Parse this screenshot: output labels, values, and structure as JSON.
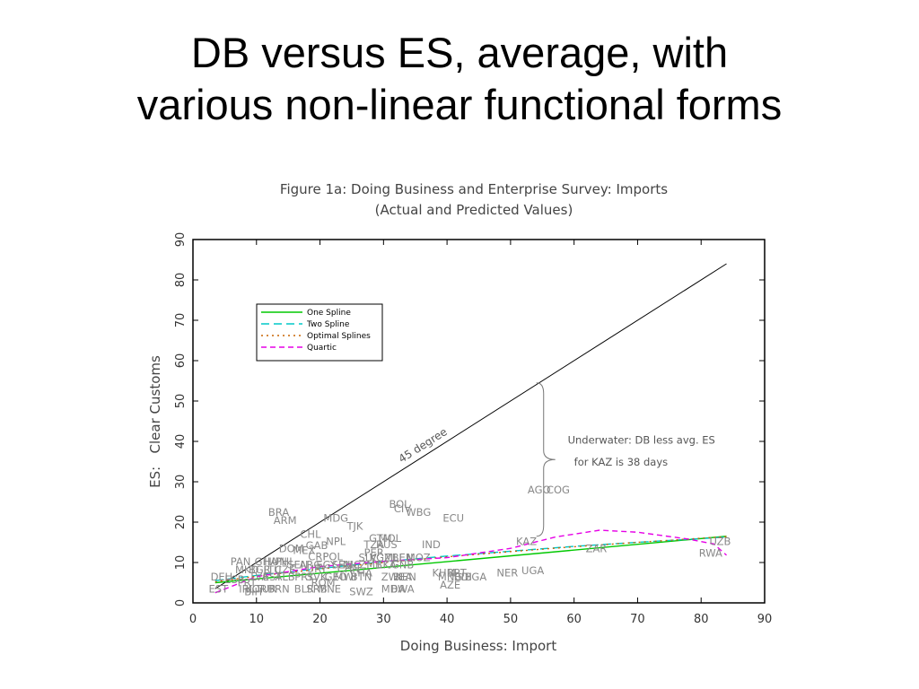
{
  "slide": {
    "title_line1": "DB versus ES, average, with",
    "title_line2": "various non-linear functional forms"
  },
  "chart_data": {
    "type": "scatter",
    "title": "Figure 1a: Doing Business and Enterprise Survey: Imports",
    "subtitle": "(Actual and Predicted Values)",
    "xlabel": "Doing Business: Import",
    "ylabel": "ES:   Clear Customs",
    "xlim": [
      0,
      90
    ],
    "ylim": [
      0,
      90
    ],
    "xticks": [
      0,
      10,
      20,
      30,
      40,
      50,
      60,
      70,
      80,
      90
    ],
    "yticks": [
      0,
      10,
      20,
      30,
      40,
      50,
      60,
      70,
      80,
      90
    ],
    "grid": false,
    "legend_position": "top-left",
    "legend": [
      {
        "name": "One Spline",
        "color": "#00c800",
        "dash": "solid"
      },
      {
        "name": "Two Spline",
        "color": "#00c8c8",
        "dash": "longdash"
      },
      {
        "name": "Optimal Splines",
        "color": "#c86400",
        "dash": "dotted"
      },
      {
        "name": "Quartic",
        "color": "#e600e6",
        "dash": "dashed"
      }
    ],
    "reference_line": {
      "label": "45 degree",
      "x": [
        3.5,
        84
      ],
      "y": [
        3.5,
        84
      ]
    },
    "series": [
      {
        "name": "One Spline",
        "x": [
          3.5,
          84
        ],
        "y": [
          5,
          16.5
        ]
      },
      {
        "name": "Two Spline",
        "x": [
          3.5,
          10,
          20,
          30,
          40,
          50,
          60,
          70,
          84
        ],
        "y": [
          5.5,
          6.8,
          8.5,
          10.2,
          11.6,
          12.8,
          14,
          15,
          16.3
        ]
      },
      {
        "name": "Optimal Splines",
        "x": [
          3.5,
          10,
          20,
          30,
          40,
          50,
          60,
          70,
          84
        ],
        "y": [
          5.2,
          6.6,
          8.4,
          10,
          11.4,
          12.7,
          13.9,
          15,
          16.4
        ]
      },
      {
        "name": "Quartic",
        "x": [
          3.5,
          10,
          20,
          30,
          40,
          50,
          57,
          64,
          70,
          78,
          82,
          84
        ],
        "y": [
          2.5,
          6.5,
          9,
          10.3,
          11.2,
          13.5,
          16.3,
          18,
          17.5,
          15.8,
          14.6,
          11.8
        ]
      }
    ],
    "annotations": [
      {
        "text": "Underwater: DB less avg. ES",
        "x": 59,
        "y": 39.5
      },
      {
        "text": "for KAZ is 38 days",
        "x": 60,
        "y": 34
      }
    ],
    "brace": {
      "x": 54.5,
      "y_from": 54.5,
      "y_to": 16.5
    },
    "points": [
      {
        "label": "AGO",
        "x": 54.5,
        "y": 28
      },
      {
        "label": "COG",
        "x": 57.5,
        "y": 28
      },
      {
        "label": "BOL",
        "x": 32.5,
        "y": 24.5
      },
      {
        "label": "CIV",
        "x": 33,
        "y": 23.3
      },
      {
        "label": "WBG",
        "x": 35.5,
        "y": 22.5
      },
      {
        "label": "ECU",
        "x": 41,
        "y": 21
      },
      {
        "label": "BRA",
        "x": 13.5,
        "y": 22.5
      },
      {
        "label": "ARM",
        "x": 14.5,
        "y": 20.5
      },
      {
        "label": "MDG",
        "x": 22.5,
        "y": 21
      },
      {
        "label": "TJK",
        "x": 25.5,
        "y": 19
      },
      {
        "label": "CHL",
        "x": 18.5,
        "y": 17
      },
      {
        "label": "NPL",
        "x": 22.5,
        "y": 15.2
      },
      {
        "label": "GAB",
        "x": 19.5,
        "y": 14.2
      },
      {
        "label": "GTM",
        "x": 29.5,
        "y": 16
      },
      {
        "label": "MOL",
        "x": 31,
        "y": 16
      },
      {
        "label": "TZA",
        "x": 28.5,
        "y": 14.5
      },
      {
        "label": "RUS",
        "x": 30.5,
        "y": 14.5
      },
      {
        "label": "IND",
        "x": 37.5,
        "y": 14.5
      },
      {
        "label": "KAZ",
        "x": 52.5,
        "y": 15.2
      },
      {
        "label": "UZB",
        "x": 83,
        "y": 15.2
      },
      {
        "label": "ZAR",
        "x": 63.5,
        "y": 13.5
      },
      {
        "label": "RWA",
        "x": 81.5,
        "y": 12.3
      },
      {
        "label": "DOM",
        "x": 15.5,
        "y": 13.5
      },
      {
        "label": "MEX",
        "x": 17.5,
        "y": 13
      },
      {
        "label": "CRI",
        "x": 19.5,
        "y": 11.5
      },
      {
        "label": "POL",
        "x": 22,
        "y": 11.5
      },
      {
        "label": "PER",
        "x": 28.5,
        "y": 12.5
      },
      {
        "label": "SLV",
        "x": 27.5,
        "y": 11.2
      },
      {
        "label": "KGZ",
        "x": 29.5,
        "y": 11.2
      },
      {
        "label": "MLI",
        "x": 31.5,
        "y": 11.2
      },
      {
        "label": "BEN",
        "x": 33,
        "y": 11.2
      },
      {
        "label": "MOZ",
        "x": 35.5,
        "y": 11.2
      },
      {
        "label": "PAN",
        "x": 7.5,
        "y": 10.2
      },
      {
        "label": "GHA",
        "x": 11.5,
        "y": 10.2
      },
      {
        "label": "HUN",
        "x": 13,
        "y": 10.2
      },
      {
        "label": "PHL",
        "x": 14.5,
        "y": 10.2
      },
      {
        "label": "SEN",
        "x": 16.5,
        "y": 9.5
      },
      {
        "label": "ARG",
        "x": 18.5,
        "y": 9.5
      },
      {
        "label": "EGY",
        "x": 21,
        "y": 9.5
      },
      {
        "label": "SEN",
        "x": 23.5,
        "y": 9.5
      },
      {
        "label": "NIC",
        "x": 25,
        "y": 9.5
      },
      {
        "label": "ZMB",
        "x": 28,
        "y": 9.5
      },
      {
        "label": "LKA",
        "x": 30.5,
        "y": 9.5
      },
      {
        "label": "GNB",
        "x": 33,
        "y": 9.5
      },
      {
        "label": "MKD",
        "x": 8.5,
        "y": 8.2
      },
      {
        "label": "BGR",
        "x": 10.5,
        "y": 8.2
      },
      {
        "label": "LTU",
        "x": 12.5,
        "y": 8.2
      },
      {
        "label": "CZE",
        "x": 14.5,
        "y": 8.2
      },
      {
        "label": "URY",
        "x": 19.5,
        "y": 8.5
      },
      {
        "label": "CHN",
        "x": 24.5,
        "y": 8.5
      },
      {
        "label": "CHA",
        "x": 26.5,
        "y": 7.5
      },
      {
        "label": "KHM",
        "x": 39.5,
        "y": 7.5
      },
      {
        "label": "BRT",
        "x": 41.5,
        "y": 7.5
      },
      {
        "label": "NER",
        "x": 49.5,
        "y": 7.5
      },
      {
        "label": "UGA",
        "x": 53.5,
        "y": 8
      },
      {
        "label": "DEU",
        "x": 4.5,
        "y": 6.5
      },
      {
        "label": "ESP",
        "x": 6.5,
        "y": 5.8
      },
      {
        "label": "LVA",
        "x": 10.5,
        "y": 6.5
      },
      {
        "label": "EST",
        "x": 12.5,
        "y": 6.5
      },
      {
        "label": "ALB",
        "x": 14.5,
        "y": 6.5
      },
      {
        "label": "PRY",
        "x": 17.5,
        "y": 6.5
      },
      {
        "label": "SVK",
        "x": 19.5,
        "y": 6.5
      },
      {
        "label": "GEO",
        "x": 22.5,
        "y": 6.5
      },
      {
        "label": "MWI",
        "x": 24,
        "y": 6.5
      },
      {
        "label": "BTN",
        "x": 26.5,
        "y": 6.5
      },
      {
        "label": "ZWE",
        "x": 31.5,
        "y": 6.5
      },
      {
        "label": "BFA",
        "x": 33,
        "y": 6.5
      },
      {
        "label": "KEN",
        "x": 33.5,
        "y": 6.5
      },
      {
        "label": "MNG",
        "x": 40.5,
        "y": 6.5
      },
      {
        "label": "BDI",
        "x": 42.5,
        "y": 6.5
      },
      {
        "label": "BGA",
        "x": 44.5,
        "y": 6.5
      },
      {
        "label": "EST",
        "x": 4,
        "y": 3.5
      },
      {
        "label": "IRL",
        "x": 8.5,
        "y": 3.5
      },
      {
        "label": "KOR",
        "x": 10,
        "y": 3.5
      },
      {
        "label": "TUR",
        "x": 11.5,
        "y": 3.5
      },
      {
        "label": "BRN",
        "x": 13.5,
        "y": 3.5
      },
      {
        "label": "BLR",
        "x": 17.5,
        "y": 3.5
      },
      {
        "label": "BIH",
        "x": 9.5,
        "y": 2.8
      },
      {
        "label": "SRB",
        "x": 19.5,
        "y": 3.5
      },
      {
        "label": "MNE",
        "x": 21.5,
        "y": 3.5
      },
      {
        "label": "SWZ",
        "x": 26.5,
        "y": 2.8
      },
      {
        "label": "MDA",
        "x": 31.5,
        "y": 3.5
      },
      {
        "label": "BWA",
        "x": 33,
        "y": 3.5
      },
      {
        "label": "AZE",
        "x": 40.5,
        "y": 4.5
      },
      {
        "label": "PRT",
        "x": 8.5,
        "y": 5
      },
      {
        "label": "ROM",
        "x": 20.5,
        "y": 5
      }
    ]
  }
}
